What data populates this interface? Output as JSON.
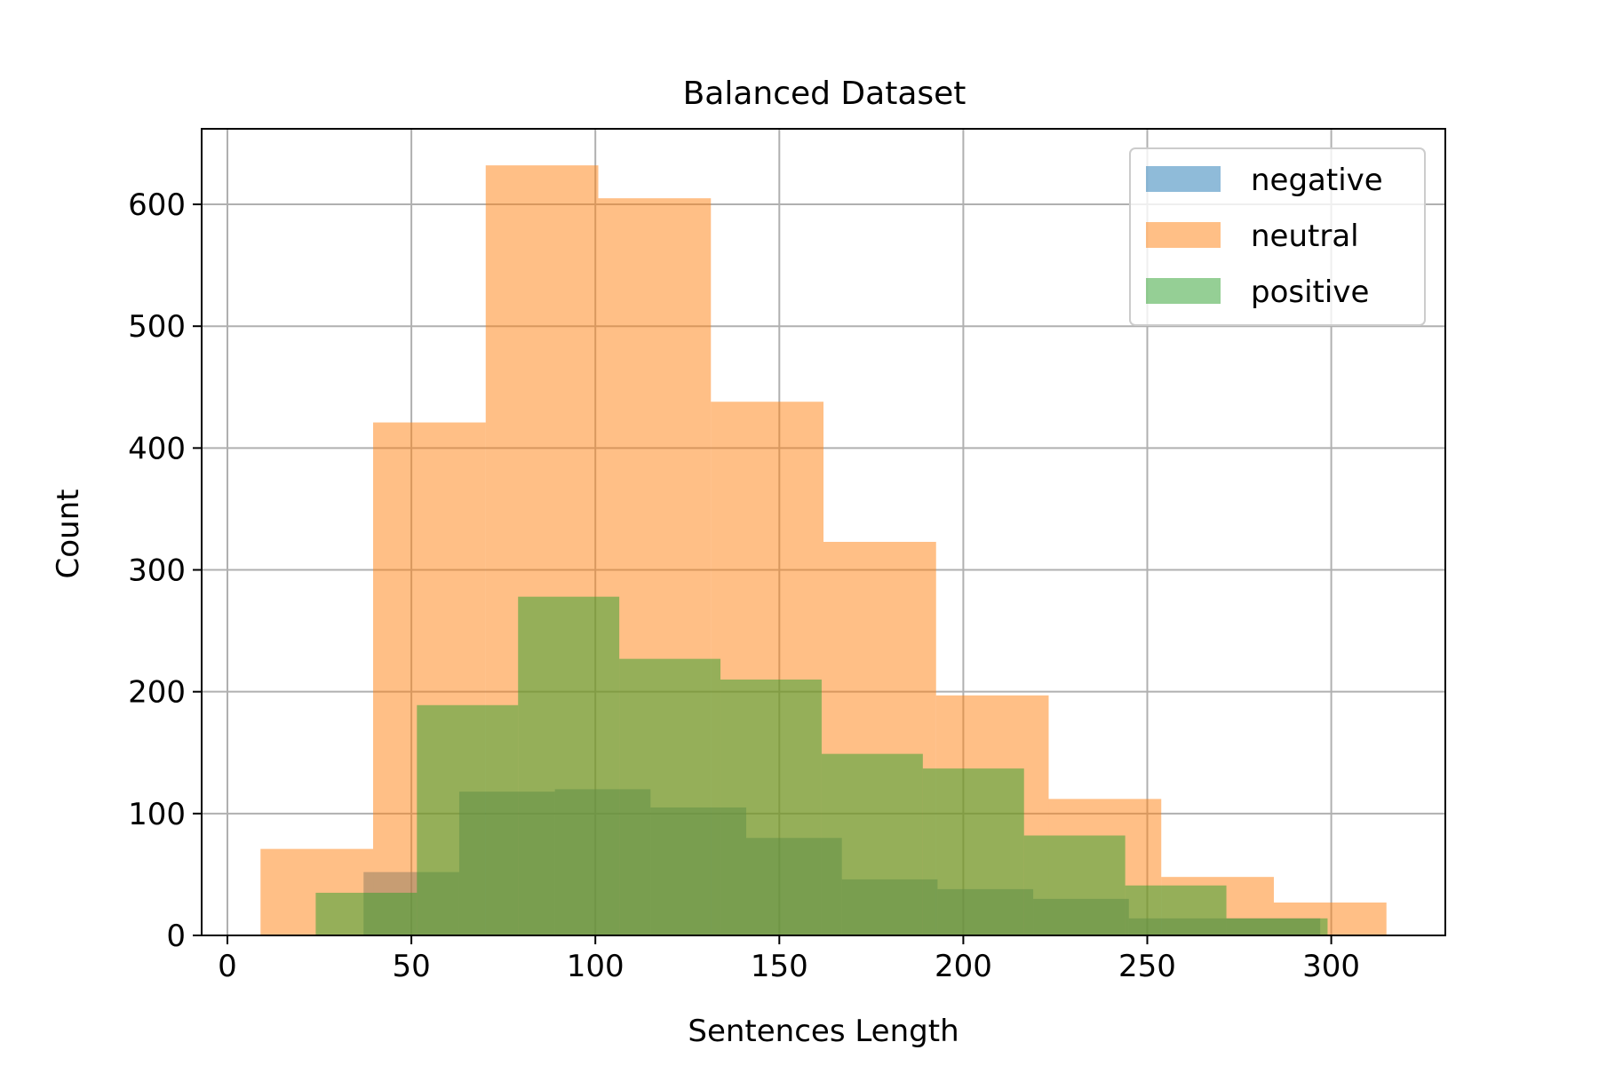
{
  "chart_data": {
    "type": "histogram",
    "title": "Balanced Dataset",
    "xlabel": "Sentences Length",
    "ylabel": "Count",
    "xlim": [
      -7,
      331
    ],
    "ylim": [
      0,
      662
    ],
    "xticks": [
      0,
      50,
      100,
      150,
      200,
      250,
      300
    ],
    "yticks": [
      0,
      100,
      200,
      300,
      400,
      500,
      600
    ],
    "grid": true,
    "legend_position": "top-right",
    "bar_opacity": 0.5,
    "series": [
      {
        "name": "negative",
        "color": "#1f77b4",
        "bin_edges": [
          37,
          63,
          89,
          115,
          141,
          167,
          193,
          219,
          245,
          271,
          297
        ],
        "values": [
          52,
          118,
          120,
          105,
          80,
          46,
          38,
          30,
          14,
          14
        ]
      },
      {
        "name": "neutral",
        "color": "#ff7f0e",
        "bin_edges": [
          9,
          39.6,
          70.2,
          100.8,
          131.4,
          162,
          192.6,
          223.2,
          253.8,
          284.4,
          315
        ],
        "values": [
          71,
          421,
          632,
          605,
          438,
          323,
          197,
          112,
          48,
          27
        ]
      },
      {
        "name": "positive",
        "color": "#2ca02c",
        "bin_edges": [
          24,
          51.5,
          79,
          106.5,
          134,
          161.5,
          189,
          216.5,
          244,
          271.5,
          299
        ],
        "values": [
          35,
          189,
          278,
          227,
          210,
          149,
          137,
          82,
          41,
          14
        ]
      }
    ]
  }
}
